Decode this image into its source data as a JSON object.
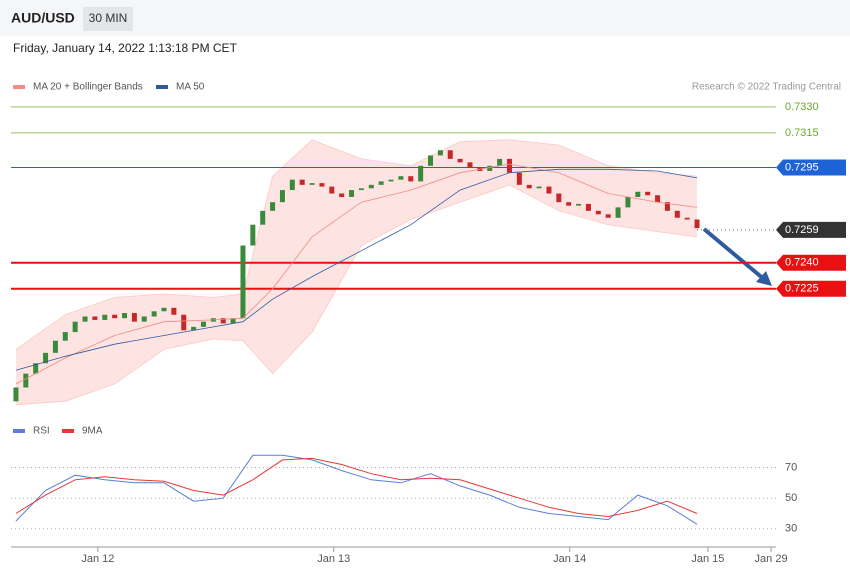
{
  "header": {
    "symbol": "AUD/USD",
    "interval": "30 MIN",
    "timestamp": "Friday, January 14, 2022 1:13:18 PM CET",
    "credit": "Research © 2022 Trading Central"
  },
  "chart_data": [
    {
      "type": "candlestick",
      "xlim": [
        -0.5,
        77
      ],
      "ylim": [
        0.7155,
        0.7334
      ],
      "up_color": "#3b8a3b",
      "down_color": "#c62828",
      "open": [
        0.716,
        0.7168,
        0.7176,
        0.7182,
        0.7188,
        0.7195,
        0.72,
        0.7206,
        0.7209,
        0.7207,
        0.721,
        0.7208,
        0.7211,
        0.7206,
        0.7209,
        0.7212,
        0.7214,
        0.721,
        0.7201,
        0.7203,
        0.7206,
        0.7208,
        0.7205,
        0.7208,
        0.725,
        0.7262,
        0.727,
        0.7275,
        0.7282,
        0.7288,
        0.7285,
        0.7286,
        0.7284,
        0.728,
        0.7278,
        0.7282,
        0.7283,
        0.7285,
        0.7287,
        0.7288,
        0.729,
        0.7287,
        0.7296,
        0.7302,
        0.7305,
        0.73,
        0.7298,
        0.7295,
        0.7293,
        0.7296,
        0.73,
        0.7292,
        0.7285,
        0.7283,
        0.7284,
        0.728,
        0.7275,
        0.7273,
        0.7274,
        0.727,
        0.7268,
        0.7266,
        0.7272,
        0.7278,
        0.7281,
        0.7279,
        0.7275,
        0.727,
        0.7266,
        0.7265
      ],
      "close": [
        0.7168,
        0.7176,
        0.7182,
        0.7188,
        0.7195,
        0.72,
        0.7206,
        0.7209,
        0.7207,
        0.721,
        0.7208,
        0.7211,
        0.7206,
        0.7209,
        0.7212,
        0.7214,
        0.721,
        0.7201,
        0.7203,
        0.7206,
        0.7208,
        0.7205,
        0.7208,
        0.725,
        0.7262,
        0.727,
        0.7275,
        0.7282,
        0.7288,
        0.7285,
        0.7286,
        0.7284,
        0.728,
        0.7278,
        0.7282,
        0.7283,
        0.7285,
        0.7287,
        0.7288,
        0.729,
        0.7287,
        0.7296,
        0.7302,
        0.7305,
        0.73,
        0.7298,
        0.7295,
        0.7293,
        0.7296,
        0.73,
        0.7292,
        0.7285,
        0.7283,
        0.7284,
        0.728,
        0.7275,
        0.7273,
        0.7274,
        0.727,
        0.7268,
        0.7266,
        0.7272,
        0.7278,
        0.7281,
        0.7279,
        0.7275,
        0.727,
        0.7266,
        0.7265,
        0.726
      ],
      "series": [
        {
          "name": "MA 20 + Bollinger Bands",
          "color": "#f28b82",
          "x": [
            0,
            5,
            10,
            15,
            20,
            23,
            26,
            30,
            35,
            40,
            45,
            50,
            55,
            60,
            65,
            69
          ],
          "values": [
            0.717,
            0.7185,
            0.7198,
            0.7206,
            0.7207,
            0.7208,
            0.7225,
            0.7255,
            0.7275,
            0.7282,
            0.7292,
            0.7297,
            0.7292,
            0.728,
            0.7275,
            0.7272
          ],
          "upper": [
            0.719,
            0.721,
            0.722,
            0.7222,
            0.722,
            0.7222,
            0.729,
            0.7311,
            0.73,
            0.7296,
            0.731,
            0.7311,
            0.7308,
            0.7296,
            0.7292,
            0.729
          ],
          "lower": [
            0.7158,
            0.716,
            0.717,
            0.719,
            0.7196,
            0.7195,
            0.7176,
            0.72,
            0.725,
            0.7265,
            0.7275,
            0.7285,
            0.727,
            0.7262,
            0.7258,
            0.7255
          ]
        },
        {
          "name": "MA 50",
          "color": "#2f5b9e",
          "x": [
            0,
            5,
            10,
            15,
            20,
            23,
            26,
            30,
            35,
            40,
            45,
            50,
            55,
            60,
            65,
            69
          ],
          "values": [
            0.7178,
            0.7186,
            0.7193,
            0.7198,
            0.7203,
            0.7206,
            0.7219,
            0.7232,
            0.7247,
            0.7262,
            0.7282,
            0.7292,
            0.7294,
            0.7294,
            0.7293,
            0.7289
          ]
        }
      ],
      "levels": [
        {
          "value": 0.733,
          "label": "0.7330",
          "color": "#6aaa2a"
        },
        {
          "value": 0.7315,
          "label": "0.7315",
          "color": "#6aaa2a"
        },
        {
          "value": 0.7295,
          "label": "0.7295",
          "color": "#1e63d6"
        },
        {
          "value": 0.7259,
          "label": "0.7259",
          "color": "#333333"
        },
        {
          "value": 0.724,
          "label": "0.7240",
          "color": "#e81010"
        },
        {
          "value": 0.7225,
          "label": "0.7225",
          "color": "#e81010"
        }
      ]
    },
    {
      "type": "line",
      "xlim": [
        -0.5,
        77
      ],
      "ylim": [
        22,
        88
      ],
      "yticks": [
        70,
        50,
        30
      ],
      "xticks": [
        {
          "value": 8.3,
          "label": "Jan 12"
        },
        {
          "value": 32.2,
          "label": "Jan 13"
        },
        {
          "value": 56.1,
          "label": "Jan 14"
        },
        {
          "value": 70.1,
          "label": "Jan 15"
        },
        {
          "value": 76.5,
          "label": "Jan 29"
        }
      ],
      "series": [
        {
          "name": "RSI",
          "color": "#5b7fd6",
          "x": [
            0,
            3,
            6,
            9,
            12,
            15,
            18,
            21,
            24,
            27,
            30,
            33,
            36,
            39,
            42,
            45,
            48,
            51,
            54,
            57,
            60,
            63,
            66,
            69
          ],
          "values": [
            35,
            55,
            65,
            62,
            60,
            60,
            48,
            50,
            78,
            78,
            75,
            68,
            62,
            60,
            66,
            58,
            52,
            44,
            40,
            38,
            36,
            52,
            45,
            33
          ]
        },
        {
          "name": "9MA",
          "color": "#e53935",
          "x": [
            0,
            3,
            6,
            9,
            12,
            15,
            18,
            21,
            24,
            27,
            30,
            33,
            36,
            39,
            42,
            45,
            48,
            51,
            54,
            57,
            60,
            63,
            66,
            69
          ],
          "values": [
            40,
            52,
            62,
            64,
            62,
            61,
            55,
            52,
            62,
            75,
            76,
            72,
            66,
            62,
            63,
            62,
            56,
            50,
            44,
            40,
            38,
            42,
            48,
            40
          ]
        }
      ]
    }
  ]
}
